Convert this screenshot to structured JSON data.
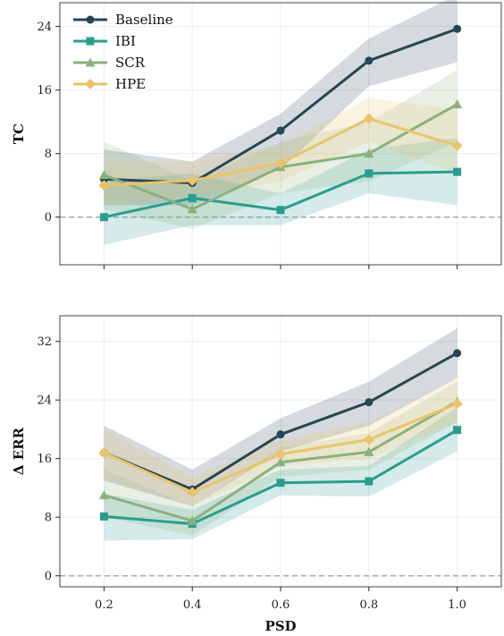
{
  "colors": {
    "baseline": "#264653",
    "ibi": "#2a9d8f",
    "scr": "#8ab17d",
    "hpe": "#e9c46a",
    "grid": "#ececec",
    "zero_line": "#aaaaaa",
    "frame": "#444444"
  },
  "chart_data": [
    {
      "type": "line",
      "xlabel": "",
      "ylabel": "TC",
      "x": [
        0.2,
        0.4,
        0.6,
        0.8,
        1.0
      ],
      "xlim": [
        0.1,
        1.1
      ],
      "ylim": [
        -6,
        27
      ],
      "yticks": [
        0,
        8,
        16,
        24
      ],
      "grid": true,
      "zero_line": true,
      "legend": "top-left",
      "series": [
        {
          "name": "Baseline",
          "marker": "circle",
          "color": "#264653",
          "values": [
            4.8,
            4.3,
            10.9,
            19.7,
            23.7
          ],
          "lower": [
            1.5,
            1.5,
            6.0,
            16.5,
            19.5
          ],
          "upper": [
            8.5,
            7.0,
            13.0,
            22.5,
            28.0
          ]
        },
        {
          "name": "IBI",
          "marker": "square",
          "color": "#2a9d8f",
          "values": [
            0.0,
            2.4,
            0.9,
            5.5,
            5.7
          ],
          "lower": [
            -3.5,
            -1.0,
            -1.0,
            3.0,
            1.5
          ],
          "upper": [
            4.5,
            5.5,
            3.0,
            8.5,
            10.0
          ]
        },
        {
          "name": "SCR",
          "marker": "triangle",
          "color": "#8ab17d",
          "values": [
            5.3,
            1.0,
            6.3,
            8.0,
            14.2
          ],
          "lower": [
            1.0,
            -1.5,
            3.0,
            4.5,
            9.5
          ],
          "upper": [
            9.5,
            4.5,
            9.5,
            12.0,
            18.5
          ]
        },
        {
          "name": "HPE",
          "marker": "diamond",
          "color": "#e9c46a",
          "values": [
            4.0,
            4.6,
            6.8,
            12.4,
            9.0
          ],
          "lower": [
            1.5,
            2.5,
            4.5,
            9.5,
            5.5
          ],
          "upper": [
            7.0,
            7.0,
            9.0,
            15.0,
            13.5
          ]
        }
      ]
    },
    {
      "type": "line",
      "xlabel": "PSD",
      "ylabel": "Δ ERR",
      "x": [
        0.2,
        0.4,
        0.6,
        0.8,
        1.0
      ],
      "xticks": [
        "0.2",
        "0.4",
        "0.6",
        "0.8",
        "1.0"
      ],
      "xlim": [
        0.1,
        1.1
      ],
      "ylim": [
        -1.5,
        35.5
      ],
      "yticks": [
        0,
        8,
        16,
        24,
        32
      ],
      "grid": true,
      "zero_line": true,
      "series": [
        {
          "name": "Baseline",
          "marker": "circle",
          "color": "#264653",
          "values": [
            16.8,
            11.8,
            19.3,
            23.7,
            30.4
          ],
          "lower": [
            13.0,
            9.5,
            17.0,
            20.5,
            27.0
          ],
          "upper": [
            20.5,
            14.5,
            21.5,
            26.5,
            33.8
          ]
        },
        {
          "name": "IBI",
          "marker": "square",
          "color": "#2a9d8f",
          "values": [
            8.1,
            7.1,
            12.7,
            12.9,
            19.9
          ],
          "lower": [
            4.8,
            5.0,
            11.0,
            10.8,
            17.0
          ],
          "upper": [
            11.2,
            9.0,
            14.5,
            15.0,
            23.0
          ]
        },
        {
          "name": "SCR",
          "marker": "triangle",
          "color": "#8ab17d",
          "values": [
            11.0,
            7.5,
            15.5,
            16.9,
            23.8
          ],
          "lower": [
            8.0,
            5.5,
            13.5,
            14.5,
            21.0
          ],
          "upper": [
            14.5,
            9.5,
            17.5,
            19.5,
            26.5
          ]
        },
        {
          "name": "HPE",
          "marker": "diamond",
          "color": "#e9c46a",
          "values": [
            16.8,
            11.4,
            16.6,
            18.6,
            23.5
          ],
          "lower": [
            13.5,
            9.5,
            15.0,
            16.0,
            21.0
          ],
          "upper": [
            20.0,
            13.5,
            18.5,
            21.0,
            27.0
          ]
        }
      ]
    }
  ]
}
